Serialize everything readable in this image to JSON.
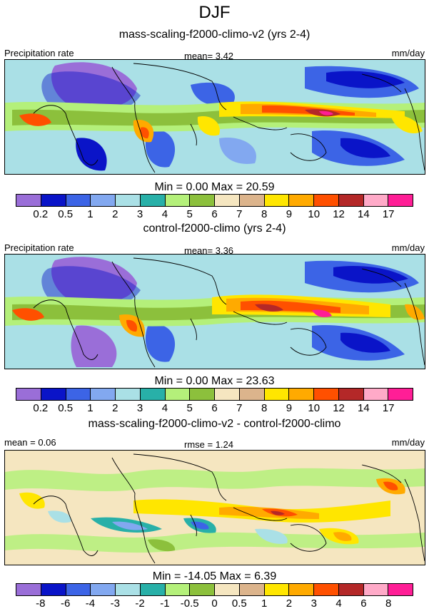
{
  "title": "DJF",
  "colors": {
    "abs": [
      "#9a6ed8",
      "#0a14c8",
      "#3c64e6",
      "#82a8f0",
      "#aae0e6",
      "#28b0a8",
      "#b4f07a",
      "#8cc03c",
      "#f5e6c0",
      "#dcb48c",
      "#ffe600",
      "#ffaa00",
      "#ff5000",
      "#b42828",
      "#ffaac8",
      "#ff1e96"
    ],
    "diff": [
      "#9a6ed8",
      "#0a14c8",
      "#3c64e6",
      "#82a8f0",
      "#aae0e6",
      "#28b0a8",
      "#b4f07a",
      "#8cc03c",
      "#f5e6c0",
      "#dcb48c",
      "#ffe600",
      "#ffaa00",
      "#ff5000",
      "#b42828",
      "#ffaac8",
      "#ff1e96"
    ]
  },
  "panels": [
    {
      "subtitle": "mass-scaling-f2000-climo-v2 (yrs 2-4)",
      "left_label": "Precipitation rate",
      "center_label": "mean=   3.42",
      "right_label": "mm/day",
      "minmax": "Min =   0.00 Max =  20.59",
      "ticks": [
        "0.2",
        "0.5",
        "1",
        "2",
        "3",
        "4",
        "5",
        "6",
        "7",
        "8",
        "9",
        "10",
        "12",
        "14",
        "17"
      ]
    },
    {
      "subtitle": "control-f2000-climo (yrs 2-4)",
      "left_label": "Precipitation rate",
      "center_label": "mean=   3.36",
      "right_label": "mm/day",
      "minmax": "Min =   0.00 Max =  23.63",
      "ticks": [
        "0.2",
        "0.5",
        "1",
        "2",
        "3",
        "4",
        "5",
        "6",
        "7",
        "8",
        "9",
        "10",
        "12",
        "14",
        "17"
      ]
    },
    {
      "subtitle": "mass-scaling-f2000-climo-v2 - control-f2000-climo",
      "left_label": "mean =   0.06",
      "center_label": "rmse =   1.24",
      "right_label": "mm/day",
      "minmax": "Min = -14.05 Max =   6.39",
      "ticks": [
        "-8",
        "-6",
        "-4",
        "-3",
        "-2",
        "-1",
        "-0.5",
        "0",
        "0.5",
        "1",
        "2",
        "3",
        "4",
        "6",
        "8"
      ]
    }
  ]
}
